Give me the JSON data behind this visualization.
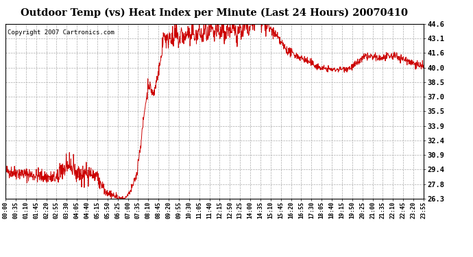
{
  "title": "Outdoor Temp (vs) Heat Index per Minute (Last 24 Hours) 20070410",
  "copyright_text": "Copyright 2007 Cartronics.com",
  "line_color": "#cc0000",
  "background_color": "#ffffff",
  "plot_bg_color": "#ffffff",
  "grid_color": "#aaaaaa",
  "ytick_labels": [
    "26.3",
    "27.8",
    "29.4",
    "30.9",
    "32.4",
    "33.9",
    "35.5",
    "37.0",
    "38.5",
    "40.0",
    "41.6",
    "43.1",
    "44.6"
  ],
  "ytick_values": [
    26.3,
    27.8,
    29.4,
    30.9,
    32.4,
    33.9,
    35.5,
    37.0,
    38.5,
    40.0,
    41.6,
    43.1,
    44.6
  ],
  "ymin": 26.3,
  "ymax": 44.6,
  "xtick_labels": [
    "00:00",
    "00:35",
    "01:10",
    "01:45",
    "02:20",
    "02:55",
    "03:30",
    "04:05",
    "04:40",
    "05:15",
    "05:50",
    "06:25",
    "07:00",
    "07:35",
    "08:10",
    "08:45",
    "09:20",
    "09:55",
    "10:30",
    "11:05",
    "11:40",
    "12:15",
    "12:50",
    "13:25",
    "14:00",
    "14:35",
    "15:10",
    "15:45",
    "16:20",
    "16:55",
    "17:30",
    "18:05",
    "18:40",
    "19:15",
    "19:50",
    "20:25",
    "21:00",
    "21:35",
    "22:10",
    "22:45",
    "23:20",
    "23:55"
  ],
  "num_minutes": 1440
}
